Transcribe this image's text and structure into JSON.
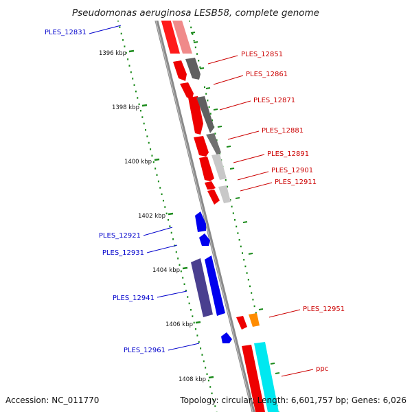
{
  "title": "Pseudomonas aeruginosa LESB58, complete genome",
  "footer": {
    "accession": "Accession: NC_011770",
    "summary": "Topology: circular; Length: 6,601,757 bp; Genes: 6,026"
  },
  "colors": {
    "forward_label": "#cc0000",
    "reverse_label": "#0000cc",
    "tick": "#1a8a1a",
    "backbone": "#888888"
  },
  "ticks": [
    {
      "label": "1396 kbp"
    },
    {
      "label": "1398 kbp"
    },
    {
      "label": "1400 kbp"
    },
    {
      "label": "1402 kbp"
    },
    {
      "label": "1404 kbp"
    },
    {
      "label": "1406 kbp"
    },
    {
      "label": "1408 kbp"
    }
  ],
  "gene_labels": [
    {
      "text": "PLES_12831",
      "strand": "reverse"
    },
    {
      "text": "PLES_12851",
      "strand": "forward"
    },
    {
      "text": "PLES_12861",
      "strand": "forward"
    },
    {
      "text": "PLES_12871",
      "strand": "forward"
    },
    {
      "text": "PLES_12881",
      "strand": "forward"
    },
    {
      "text": "PLES_12891",
      "strand": "forward"
    },
    {
      "text": "PLES_12901",
      "strand": "forward"
    },
    {
      "text": "PLES_12911",
      "strand": "forward"
    },
    {
      "text": "PLES_12921",
      "strand": "reverse"
    },
    {
      "text": "PLES_12931",
      "strand": "reverse"
    },
    {
      "text": "PLES_12941",
      "strand": "reverse"
    },
    {
      "text": "PLES_12951",
      "strand": "forward"
    },
    {
      "text": "PLES_12961",
      "strand": "reverse"
    },
    {
      "text": "ppc",
      "strand": "forward"
    }
  ]
}
